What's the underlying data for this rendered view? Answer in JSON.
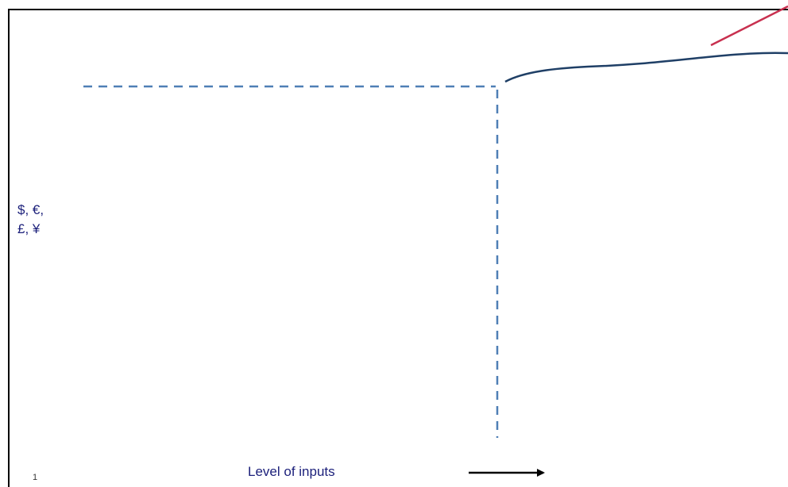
{
  "y_axis": {
    "label_line1": "$, €,",
    "label_line2": "£, ¥"
  },
  "x_axis": {
    "label": "Level of inputs"
  },
  "page_number": "1",
  "colors": {
    "text": "#1b1f7a",
    "curve": "#1f3f66",
    "dashed_guide": "#4f7fb5",
    "secondary_line": "#c8304f",
    "arrow": "#000000"
  }
}
